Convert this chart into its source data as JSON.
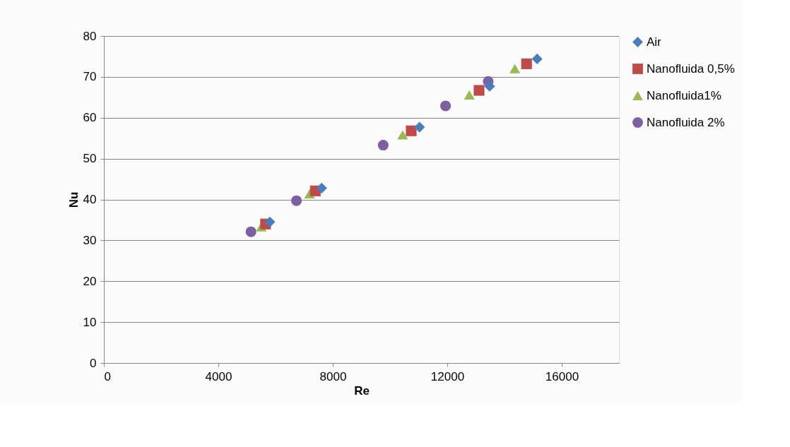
{
  "chart_data": {
    "type": "scatter",
    "xlabel": "Re",
    "ylabel": "Nu",
    "xlim": [
      0,
      18000
    ],
    "xticks": [
      0,
      4000,
      8000,
      12000,
      16000
    ],
    "ylim": [
      0,
      80
    ],
    "yticks": [
      0,
      10,
      20,
      30,
      40,
      50,
      60,
      70,
      80
    ],
    "grid": "y",
    "legend": "right",
    "series": [
      {
        "name": "Air",
        "color": "#4a7ebb",
        "marker": "diamond",
        "x": [
          5800,
          7610,
          11030,
          13480,
          15140
        ],
        "values": [
          34.5,
          42.8,
          57.7,
          67.7,
          74.4
        ]
      },
      {
        "name": "Nanofluida 0,5%",
        "color": "#be4b48",
        "marker": "square",
        "x": [
          5650,
          7390,
          10740,
          13110,
          14770
        ],
        "values": [
          34.0,
          42.1,
          56.8,
          66.7,
          73.2
        ]
      },
      {
        "name": "Nanofluida1%",
        "color": "#98b954",
        "marker": "triangle",
        "x": [
          5500,
          7190,
          10440,
          12770,
          14360
        ],
        "values": [
          33.3,
          41.4,
          55.8,
          65.6,
          72.0
        ]
      },
      {
        "name": "Nanofluida 2%",
        "color": "#7d60a0",
        "marker": "circle",
        "x": [
          5140,
          6730,
          9760,
          11940,
          13430
        ],
        "values": [
          32.1,
          39.7,
          53.3,
          62.9,
          68.9
        ]
      }
    ]
  }
}
